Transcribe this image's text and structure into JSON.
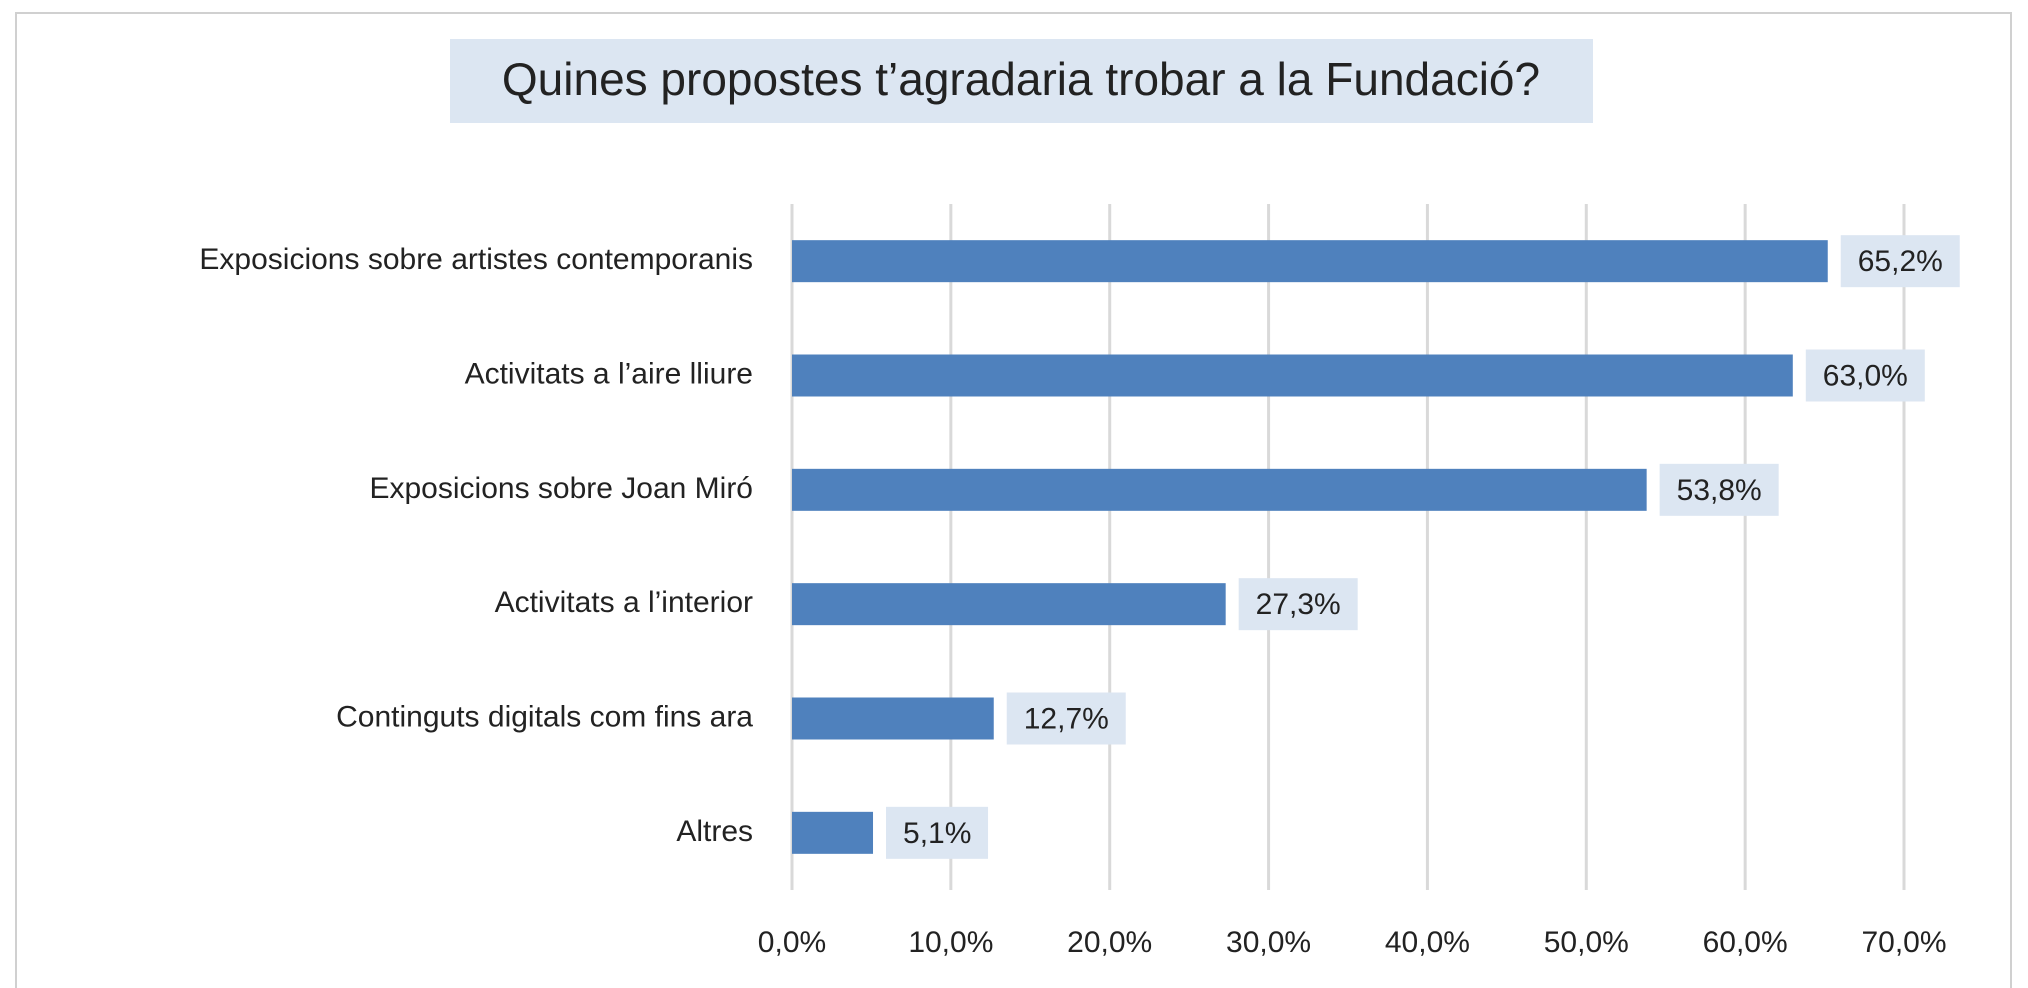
{
  "chart_data": {
    "type": "bar",
    "orientation": "horizontal",
    "title": "Quines propostes t’agradaria trobar a la Fundació?",
    "categories": [
      "Exposicions sobre artistes contemporanis",
      "Activitats a l’aire lliure",
      "Exposicions sobre Joan Miró",
      "Activitats a l’interior",
      "Continguts digitals com fins ara",
      "Altres"
    ],
    "values": [
      65.2,
      63.0,
      53.8,
      27.3,
      12.7,
      5.1
    ],
    "value_labels": [
      "65,2%",
      "63,0%",
      "53,8%",
      "27,3%",
      "12,7%",
      "5,1%"
    ],
    "color": "#4f81bd",
    "xlim": [
      0,
      70
    ],
    "xticks": [
      {
        "value": 0,
        "label": "0,0%"
      },
      {
        "value": 10,
        "label": "10,0%"
      },
      {
        "value": 20,
        "label": "20,0%"
      },
      {
        "value": 30,
        "label": "30,0%"
      },
      {
        "value": 40,
        "label": "40,0%"
      },
      {
        "value": 50,
        "label": "50,0%"
      },
      {
        "value": 60,
        "label": "60,0%"
      },
      {
        "value": 70,
        "label": "70,0%"
      }
    ],
    "grid": true
  }
}
